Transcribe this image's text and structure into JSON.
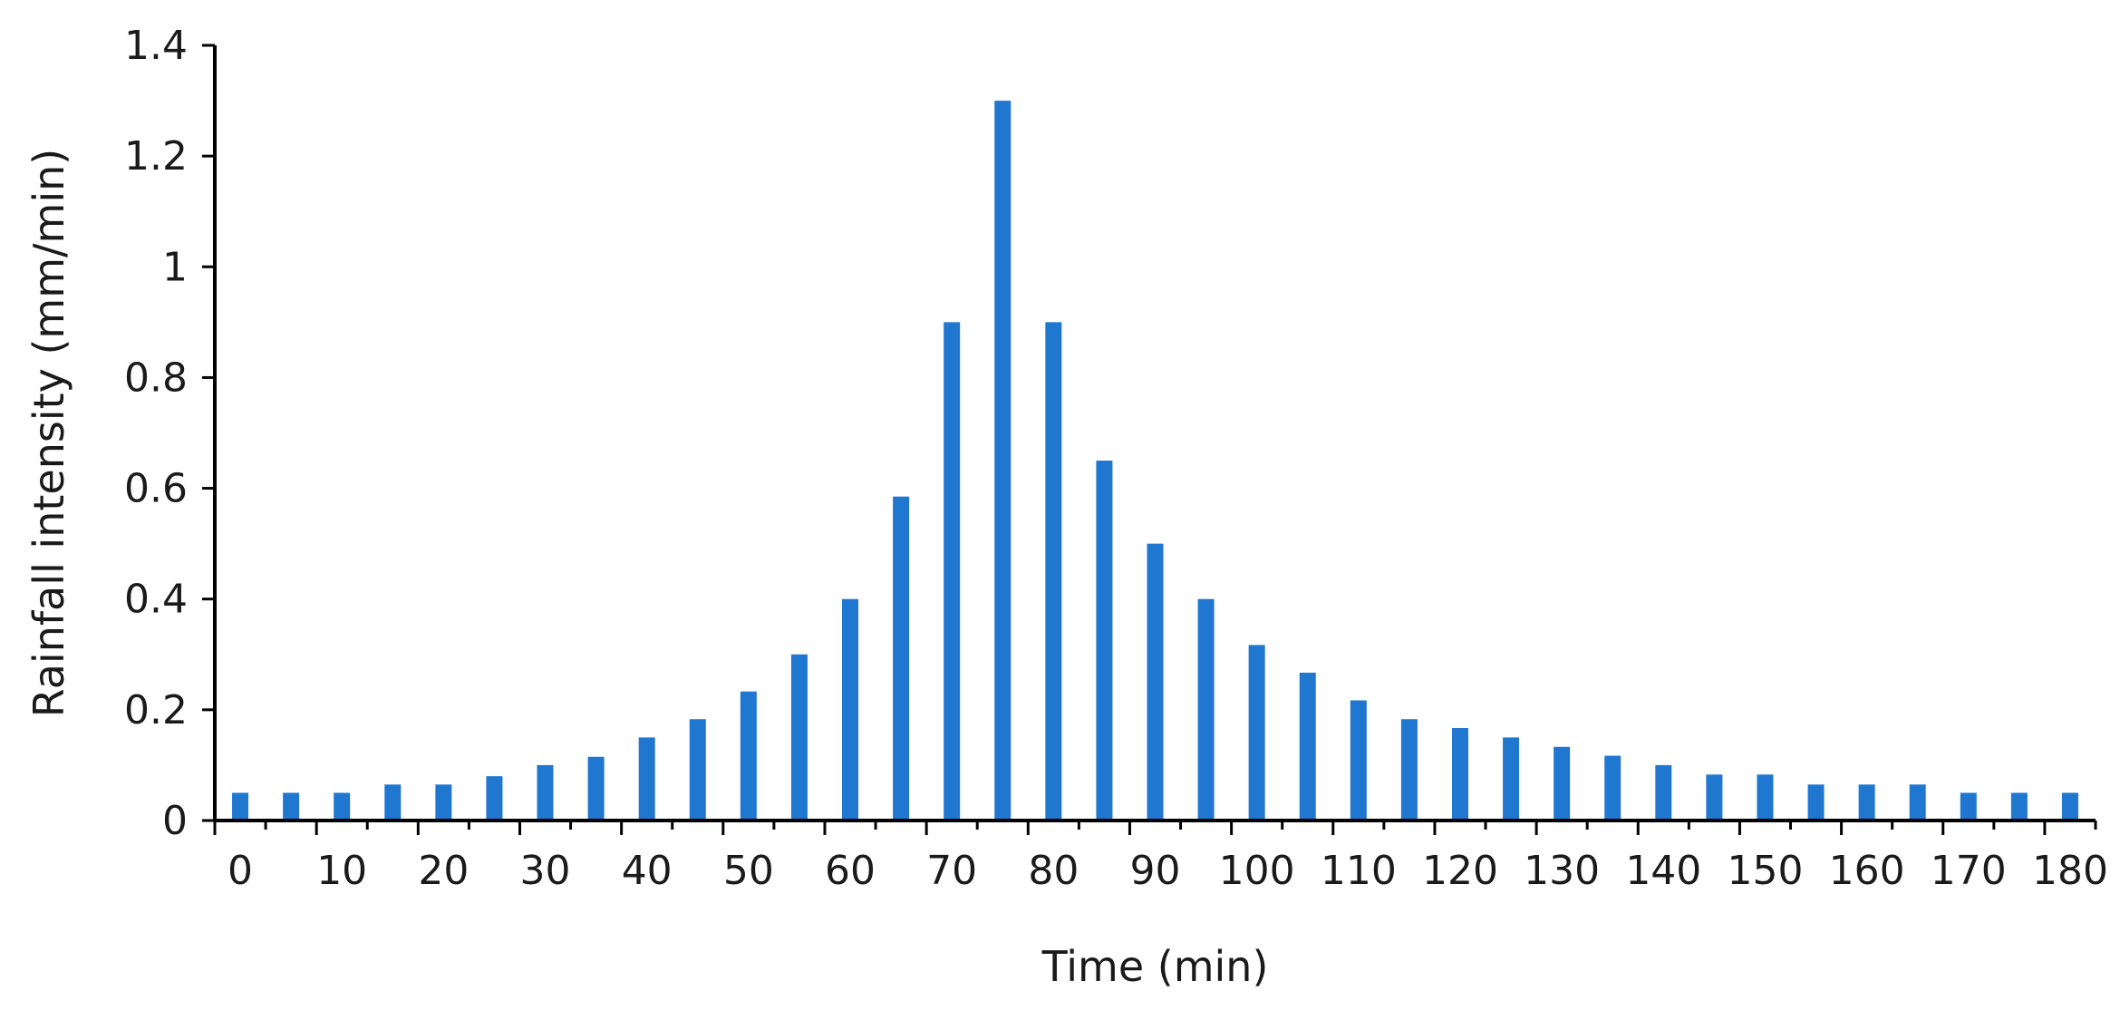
{
  "chart_data": {
    "type": "bar",
    "title": "",
    "xlabel": "Time (min)",
    "ylabel": "Rainfall intensity (mm/min)",
    "ylim": [
      0,
      1.4
    ],
    "xlim": [
      0,
      185
    ],
    "yticks": [
      "0",
      "0.2",
      "0.4",
      "0.6",
      "0.8",
      "1",
      "1.2",
      "1.4"
    ],
    "xticks": [
      "0",
      "10",
      "20",
      "30",
      "40",
      "50",
      "60",
      "70",
      "80",
      "90",
      "100",
      "110",
      "120",
      "130",
      "140",
      "150",
      "160",
      "170",
      "180"
    ],
    "x": [
      2.5,
      7.5,
      12.5,
      17.5,
      22.5,
      27.5,
      32.5,
      37.5,
      42.5,
      47.5,
      52.5,
      57.5,
      62.5,
      67.5,
      72.5,
      77.5,
      82.5,
      87.5,
      92.5,
      97.5,
      102.5,
      107.5,
      112.5,
      117.5,
      122.5,
      127.5,
      132.5,
      137.5,
      142.5,
      147.5,
      152.5,
      157.5,
      162.5,
      167.5,
      172.5,
      177.5,
      182.5
    ],
    "values": [
      0.05,
      0.05,
      0.05,
      0.065,
      0.065,
      0.08,
      0.1,
      0.115,
      0.15,
      0.183,
      0.233,
      0.3,
      0.4,
      0.585,
      0.9,
      1.3,
      0.9,
      0.65,
      0.5,
      0.4,
      0.317,
      0.267,
      0.217,
      0.183,
      0.167,
      0.15,
      0.133,
      0.117,
      0.1,
      0.083,
      0.083,
      0.065,
      0.065,
      0.065,
      0.05,
      0.05,
      0.05
    ],
    "bar_color": "#1f77d0",
    "grid": false,
    "legend": "none"
  }
}
